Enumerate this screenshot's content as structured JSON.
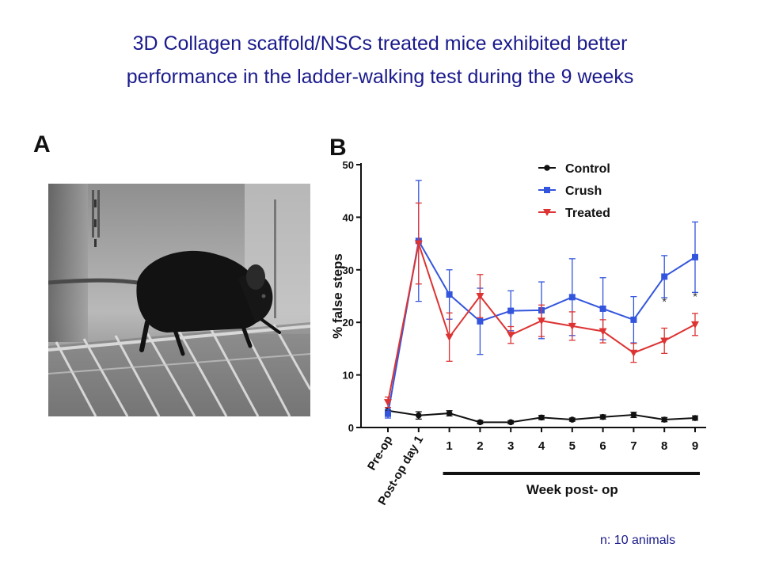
{
  "slide": {
    "title_line1": "3D Collagen scaffold/NSCs treated mice exhibited better",
    "title_line2": "performance in the ladder-walking test during the 9 weeks",
    "footnote": "n: 10 animals"
  },
  "panels": {
    "a_label": "A",
    "b_label": "B"
  },
  "photo": {
    "description_icon": "mouse-on-ladder-photo"
  },
  "colors": {
    "title": "#1a1a8c",
    "control": "#111111",
    "crush": "#3355dd",
    "treated": "#dd3333",
    "axis": "#111111"
  },
  "chart_data": {
    "type": "line",
    "ylabel": "% false steps",
    "xlabel": "Week post- op",
    "ylim": [
      0,
      50
    ],
    "yticks": [
      0,
      10,
      20,
      30,
      40,
      50
    ],
    "categories": [
      "Pre-op",
      "Post-op day 1",
      "1",
      "2",
      "3",
      "4",
      "5",
      "6",
      "7",
      "8",
      "9"
    ],
    "legend_position": "top-right",
    "significance": [
      {
        "category": "8",
        "label": "*"
      },
      {
        "category": "9",
        "label": "*"
      }
    ],
    "series": [
      {
        "name": "Control",
        "marker": "circle",
        "values": [
          3.2,
          2.3,
          2.7,
          1.0,
          1.0,
          1.9,
          1.5,
          2.0,
          2.4,
          1.5,
          1.8
        ],
        "errors": [
          0.6,
          0.7,
          0.5,
          0.3,
          0.3,
          0.4,
          0.3,
          0.4,
          0.5,
          0.4,
          0.4
        ]
      },
      {
        "name": "Crush",
        "marker": "square",
        "values": [
          2.6,
          35.5,
          25.3,
          20.2,
          22.2,
          22.3,
          24.8,
          22.6,
          20.5,
          28.7,
          32.4
        ],
        "errors": [
          0.8,
          11.5,
          4.7,
          6.3,
          3.8,
          5.4,
          7.3,
          5.9,
          4.4,
          4.0,
          6.7
        ]
      },
      {
        "name": "Treated",
        "marker": "triangle-down",
        "values": [
          4.8,
          35.0,
          17.2,
          25.0,
          17.6,
          20.3,
          19.3,
          18.3,
          14.2,
          16.5,
          19.6
        ],
        "errors": [
          1.0,
          7.7,
          4.6,
          4.1,
          1.6,
          3.0,
          2.7,
          2.2,
          1.8,
          2.4,
          2.1
        ]
      }
    ]
  }
}
